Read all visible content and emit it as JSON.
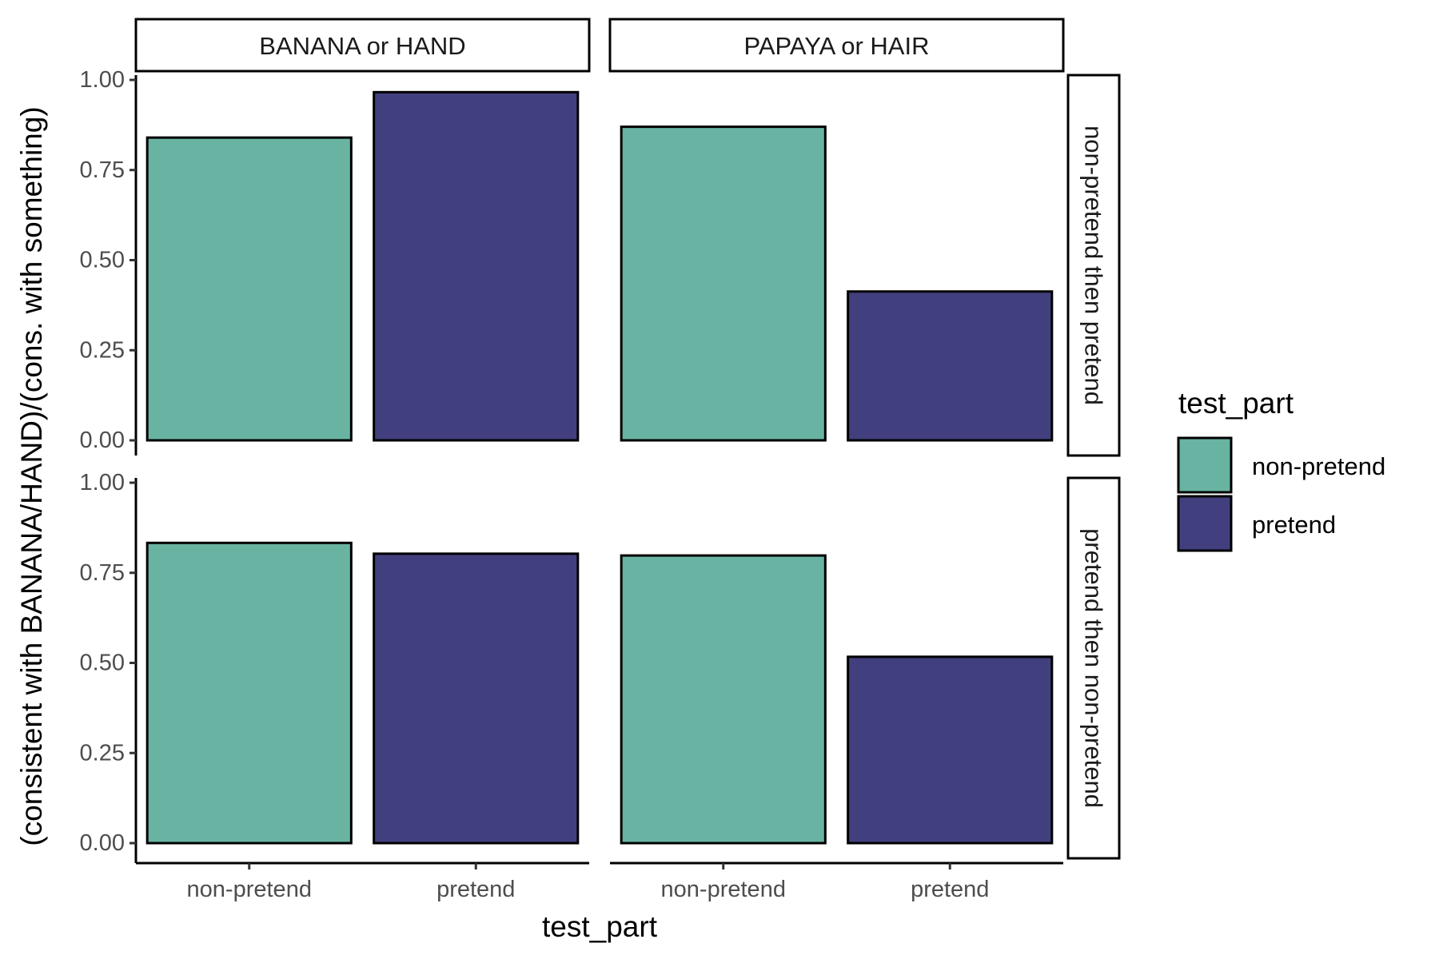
{
  "chart_data": {
    "type": "bar",
    "facet_columns": [
      "BANANA or HAND",
      "PAPAYA or HAIR"
    ],
    "facet_rows": [
      "non-pretend then pretend",
      "pretend then non-pretend"
    ],
    "categories": [
      "non-pretend",
      "pretend"
    ],
    "xlabel": "test_part",
    "ylabel": "(consistent with BANANA/HAND)/(cons. with something)",
    "ylim": [
      0,
      1
    ],
    "yticks": [
      "0.00",
      "0.25",
      "0.50",
      "0.75",
      "1.00"
    ],
    "legend": {
      "title": "test_part",
      "position": "right",
      "entries": [
        {
          "label": "non-pretend",
          "color": "#69b3a2"
        },
        {
          "label": "pretend",
          "color": "#413f7d"
        }
      ]
    },
    "panels": [
      {
        "row": "non-pretend then pretend",
        "col": "BANANA or HAND",
        "values": [
          0.84,
          0.966
        ]
      },
      {
        "row": "non-pretend then pretend",
        "col": "PAPAYA or HAIR",
        "values": [
          0.87,
          0.413
        ]
      },
      {
        "row": "pretend then non-pretend",
        "col": "BANANA or HAND",
        "values": [
          0.833,
          0.803
        ]
      },
      {
        "row": "pretend then non-pretend",
        "col": "PAPAYA or HAIR",
        "values": [
          0.798,
          0.517
        ]
      }
    ],
    "grid": false
  }
}
